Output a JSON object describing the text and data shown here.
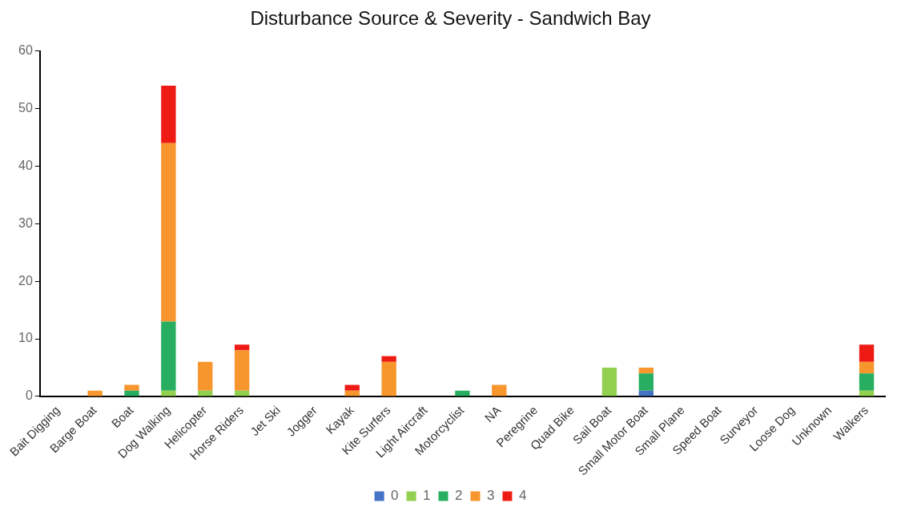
{
  "chart_data": {
    "type": "bar",
    "title": "Disturbance Source & Severity - Sandwich Bay",
    "stacked": true,
    "grid": false,
    "legend": "bottom",
    "categories": [
      "Bait Digging",
      "Barge Boat",
      "Boat",
      "Dog Walking",
      "Helicopter",
      "Horse Riders",
      "Jet Ski",
      "Jogger",
      "Kayak",
      "Kite Surfers",
      "Light Aircraft",
      "Motorcyclist",
      "NA",
      "Peregrine",
      "Quad Bike",
      "Sail Boat",
      "Small Motor Boat",
      "Small Plane",
      "Speed Boat",
      "Surveyor",
      "Loose Dog",
      "Unknown",
      "Walkers"
    ],
    "ylim": [
      0,
      60
    ],
    "yticks": [
      0,
      10,
      20,
      30,
      40,
      50,
      60
    ],
    "series": [
      {
        "name": "0",
        "color": "#4472c4",
        "values": [
          0,
          0,
          0,
          0,
          0,
          0,
          0,
          0,
          0,
          0,
          0,
          0,
          0,
          0,
          0,
          0,
          1,
          0,
          0,
          0,
          0,
          0,
          0
        ]
      },
      {
        "name": "1",
        "color": "#92d050",
        "values": [
          0,
          0,
          0,
          1,
          1,
          1,
          0,
          0,
          0,
          0,
          0,
          0,
          0,
          0,
          0,
          5,
          0,
          0,
          0,
          0,
          0,
          0,
          1
        ]
      },
      {
        "name": "2",
        "color": "#27ae60",
        "values": [
          0,
          0,
          1,
          12,
          0,
          0,
          0,
          0,
          0,
          0,
          0,
          1,
          0,
          0,
          0,
          0,
          3,
          0,
          0,
          0,
          0,
          0,
          3
        ]
      },
      {
        "name": "3",
        "color": "#f7962d",
        "values": [
          0,
          1,
          1,
          31,
          5,
          7,
          0,
          0,
          1,
          6,
          0,
          0,
          2,
          0,
          0,
          0,
          1,
          0,
          0,
          0,
          0,
          0,
          2
        ]
      },
      {
        "name": "4",
        "color": "#ee1b15",
        "values": [
          0,
          0,
          0,
          10,
          0,
          1,
          0,
          0,
          1,
          1,
          0,
          0,
          0,
          0,
          0,
          0,
          0,
          0,
          0,
          0,
          0,
          0,
          3
        ]
      }
    ]
  }
}
